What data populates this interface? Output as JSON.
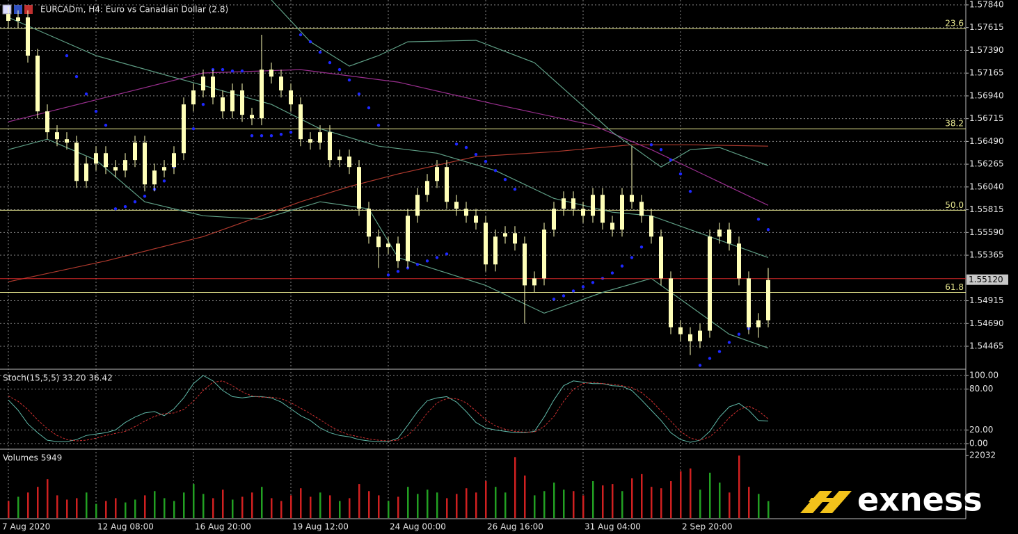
{
  "chart_data": [
    {
      "type": "candlestick",
      "title": "EURCADm, H4:  Euro vs Canadian Dollar (2.8)",
      "color": "#ffffb8",
      "grid": true,
      "categories": [
        "7 Aug 2020",
        null,
        null,
        null,
        null,
        null,
        null,
        null,
        null,
        "12 Aug 08:00",
        null,
        null,
        null,
        null,
        null,
        null,
        null,
        null,
        null,
        "16 Aug 20:00",
        null,
        null,
        null,
        null,
        null,
        null,
        null,
        null,
        null,
        "19 Aug 12:00",
        null,
        null,
        null,
        null,
        null,
        null,
        null,
        null,
        null,
        "24 Aug 00:00",
        null,
        null,
        null,
        null,
        null,
        null,
        null,
        null,
        null,
        "26 Aug 16:00",
        null,
        null,
        null,
        null,
        null,
        null,
        null,
        null,
        null,
        "31 Aug 04:00",
        null,
        null,
        null,
        null,
        null,
        null,
        null,
        null,
        null,
        "2 Sep 20:00",
        null,
        null,
        null,
        null,
        null,
        null,
        null,
        null,
        null
      ],
      "open": [
        1.5775,
        1.57682,
        1.57716,
        1.57338,
        1.56787,
        1.56581,
        1.56512,
        1.56478,
        1.56099,
        1.56271,
        1.56374,
        1.56237,
        1.56202,
        1.56306,
        1.56478,
        1.56065,
        1.56202,
        1.56237,
        1.56374,
        1.56856,
        1.56994,
        1.57131,
        1.56925,
        1.56787,
        1.56994,
        1.56753,
        1.56718,
        1.572,
        1.57131,
        1.56994,
        1.56856,
        1.56512,
        1.56478,
        1.56581,
        1.56306,
        1.5634,
        1.56237,
        1.55824,
        1.55549,
        1.55446,
        1.5548,
        1.55308,
        1.55755,
        1.55962,
        1.56099,
        1.56237,
        1.55893,
        1.55824,
        1.55755,
        1.55686,
        1.55274,
        1.55549,
        1.55583,
        1.5548,
        1.55067,
        1.55136,
        1.55618,
        1.55824,
        1.55927,
        1.55824,
        1.55755,
        1.55962,
        1.55686,
        1.55618,
        1.55962,
        1.55893,
        1.55755,
        1.55549,
        1.55136,
        1.54653,
        1.54584,
        1.54515,
        1.54619,
        1.55549,
        1.55618,
        1.5548,
        1.55136,
        1.54653,
        1.54722
      ],
      "high": [
        1.57819,
        1.57785,
        1.57785,
        1.57406,
        1.56856,
        1.5665,
        1.56581,
        1.56546,
        1.5634,
        1.56443,
        1.56443,
        1.56306,
        1.56374,
        1.56546,
        1.56546,
        1.56271,
        1.56306,
        1.56443,
        1.56925,
        1.57062,
        1.572,
        1.572,
        1.56994,
        1.57062,
        1.57062,
        1.56822,
        1.57544,
        1.57269,
        1.572,
        1.57062,
        1.56925,
        1.56581,
        1.5665,
        1.5665,
        1.56409,
        1.56409,
        1.56306,
        1.55893,
        1.55618,
        1.55549,
        1.55549,
        1.55824,
        1.5603,
        1.56168,
        1.56306,
        1.56306,
        1.55962,
        1.55893,
        1.55824,
        1.55755,
        1.55618,
        1.55652,
        1.55652,
        1.55549,
        1.55205,
        1.55686,
        1.55893,
        1.55996,
        1.55996,
        1.55893,
        1.5603,
        1.5603,
        1.55755,
        1.5603,
        1.56443,
        1.55962,
        1.55824,
        1.55618,
        1.55205,
        1.54722,
        1.54653,
        1.54688,
        1.55618,
        1.55686,
        1.55686,
        1.55549,
        1.55205,
        1.54792,
        1.55239
      ],
      "low": [
        1.57613,
        1.57613,
        1.57269,
        1.56718,
        1.56512,
        1.56443,
        1.56409,
        1.5603,
        1.5603,
        1.56202,
        1.56168,
        1.56134,
        1.56134,
        1.56237,
        1.55996,
        1.55996,
        1.56134,
        1.56168,
        1.56306,
        1.56787,
        1.56925,
        1.56856,
        1.56718,
        1.56718,
        1.56684,
        1.5665,
        1.5665,
        1.57062,
        1.56925,
        1.56787,
        1.56443,
        1.56409,
        1.56409,
        1.56237,
        1.56237,
        1.56168,
        1.55755,
        1.5548,
        1.55239,
        1.55377,
        1.55239,
        1.55239,
        1.55686,
        1.55893,
        1.5603,
        1.55824,
        1.55755,
        1.55686,
        1.55618,
        1.55205,
        1.55205,
        1.5548,
        1.55411,
        1.54688,
        1.54998,
        1.55067,
        1.55549,
        1.55755,
        1.55755,
        1.55686,
        1.55686,
        1.55618,
        1.55549,
        1.55549,
        1.55824,
        1.55686,
        1.5548,
        1.55067,
        1.54584,
        1.54515,
        1.54378,
        1.54447,
        1.5455,
        1.5548,
        1.55411,
        1.55067,
        1.54584,
        1.5455,
        1.54653
      ],
      "close": [
        1.57682,
        1.57716,
        1.57338,
        1.56787,
        1.56581,
        1.56512,
        1.56478,
        1.56099,
        1.56271,
        1.56374,
        1.56237,
        1.56202,
        1.56306,
        1.56478,
        1.56065,
        1.56202,
        1.56237,
        1.56374,
        1.56856,
        1.56994,
        1.57131,
        1.56925,
        1.56787,
        1.56994,
        1.56753,
        1.56718,
        1.572,
        1.57131,
        1.56994,
        1.56856,
        1.56512,
        1.56478,
        1.56581,
        1.56306,
        1.5634,
        1.56237,
        1.55824,
        1.55549,
        1.55446,
        1.5548,
        1.55308,
        1.55755,
        1.55962,
        1.56099,
        1.56237,
        1.55893,
        1.55824,
        1.55755,
        1.55686,
        1.55274,
        1.55549,
        1.55583,
        1.5548,
        1.55067,
        1.55136,
        1.55618,
        1.55824,
        1.55927,
        1.55824,
        1.55755,
        1.55962,
        1.55686,
        1.55618,
        1.55962,
        1.55893,
        1.55755,
        1.55549,
        1.55136,
        1.54653,
        1.54584,
        1.54515,
        1.54619,
        1.55549,
        1.55618,
        1.5548,
        1.55136,
        1.54653,
        1.54722,
        1.5512
      ],
      "ylim": [
        1.54245,
        1.57888
      ],
      "yticks": [
        {
          "value": 1.5784,
          "label": "1.57840"
        },
        1.57615,
        {
          "value": 1.5739,
          "label": "1.57390"
        },
        1.57165,
        {
          "value": 1.5694,
          "label": "1.56940"
        },
        1.56715,
        {
          "value": 1.5649,
          "label": "1.56490"
        },
        1.56265,
        {
          "value": 1.5604,
          "label": "1.56040"
        },
        1.55815,
        {
          "value": 1.5559,
          "label": "1.55590"
        },
        1.55365,
        1.54915,
        {
          "value": 1.5469,
          "label": "1.54690"
        },
        1.54465
      ],
      "overlays": [
        {
          "type": "line",
          "color": "#b03a2e",
          "x": [
            0,
            10,
            20,
            30,
            35,
            40,
            48,
            56,
            64,
            70,
            78
          ],
          "values": [
            1.55102,
            1.55308,
            1.55549,
            1.55893,
            1.56044,
            1.56168,
            1.5634,
            1.56388,
            1.56457,
            1.56457,
            1.56443
          ]
        },
        {
          "type": "line",
          "color": "#9a2f8f",
          "x": [
            0,
            10,
            20,
            30,
            40,
            50,
            60,
            66,
            72,
            78
          ],
          "values": [
            1.56684,
            1.56925,
            1.57166,
            1.572,
            1.57076,
            1.56856,
            1.5665,
            1.56409,
            1.56134,
            1.55858
          ]
        },
        {
          "type": "line",
          "color": "#5f9f86",
          "x": [
            27,
            31,
            35,
            38,
            41,
            48,
            54,
            58,
            62,
            67,
            70,
            73,
            78
          ],
          "values": [
            1.57888,
            1.57475,
            1.57234,
            1.57338,
            1.57475,
            1.57489,
            1.57269,
            1.56925,
            1.56581,
            1.56237,
            1.56409,
            1.5643,
            1.56251
          ]
        },
        {
          "type": "line",
          "color": "#5f9f86",
          "x": [
            0,
            9,
            18,
            27,
            32,
            38,
            44,
            50,
            56,
            62,
            66,
            72,
            78
          ],
          "values": [
            1.57716,
            1.57338,
            1.57097,
            1.56856,
            1.56615,
            1.56443,
            1.56374,
            1.56202,
            1.55927,
            1.5579,
            1.55755,
            1.55549,
            1.55342
          ]
        },
        {
          "type": "line",
          "color": "#5f9f86",
          "x": [
            0,
            4,
            9,
            14,
            20,
            26,
            32,
            37,
            40,
            49,
            55,
            61,
            66,
            70,
            74,
            78
          ],
          "values": [
            1.56409,
            1.56512,
            1.56306,
            1.55893,
            1.55755,
            1.55721,
            1.55893,
            1.55824,
            1.55342,
            1.55067,
            1.54792,
            1.54998,
            1.55136,
            1.54861,
            1.54584,
            1.54447
          ]
        },
        {
          "type": "dots",
          "color": "#1e28ff",
          "values": [
            null,
            null,
            null,
            null,
            null,
            null,
            1.57338,
            1.57131,
            1.56959,
            1.56787,
            1.5665,
            1.55824,
            1.55845,
            1.55893,
            1.55948,
            1.56017,
            1.56099,
            1.56237,
            1.56409,
            1.56615,
            1.56856,
            1.572,
            1.572,
            1.57186,
            1.57186,
            1.56546,
            1.56546,
            1.56546,
            1.5656,
            1.56581,
            1.57544,
            1.57475,
            1.57372,
            1.57269,
            1.572,
            1.57097,
            1.56959,
            1.56822,
            1.5665,
            1.5517,
            1.55205,
            1.55239,
            1.55274,
            1.55308,
            1.55342,
            1.55377,
            1.56464,
            1.5643,
            1.56361,
            1.56292,
            1.56202,
            1.56113,
            1.56017,
            null,
            null,
            null,
            1.5493,
            1.54964,
            1.55012,
            1.55053,
            1.55095,
            1.55136,
            1.5519,
            1.55258,
            1.55342,
            1.55446,
            1.56457,
            1.56409,
            1.56306,
            1.56168,
            1.55996,
            1.54276,
            1.54345,
            1.54413,
            1.54503,
            1.54584,
            1.5464,
            1.55721,
            1.55618
          ]
        }
      ],
      "fib_color": "#e8e890",
      "fib_levels": [
        {
          "value": 1.57606,
          "label": "23.6"
        },
        {
          "value": 1.56615,
          "label": "38.2"
        },
        {
          "value": 1.5581,
          "label": "50.0"
        },
        {
          "value": 1.54998,
          "label": "61.8"
        }
      ],
      "current_color": "#d02828",
      "current_price": {
        "value": 1.5512,
        "label": "1.55120"
      }
    },
    {
      "type": "line",
      "title": "Stoch(15,5,5) 33.20 36.42",
      "grid": true,
      "ylim": [
        -7.1,
        107.1
      ],
      "yticks": [
        {
          "value": 100,
          "label": "100.00"
        },
        {
          "value": 80,
          "label": "80.00"
        },
        {
          "value": 20,
          "label": "20.00"
        },
        {
          "value": 0,
          "label": "0.00"
        }
      ],
      "series": [
        {
          "color": "#5fb8a8",
          "style": "solid",
          "values": [
            64,
            49,
            29,
            16,
            5,
            3,
            3,
            6,
            12,
            14,
            16,
            20,
            31,
            39,
            45,
            47,
            41,
            51,
            67,
            88,
            100,
            92,
            78,
            69,
            67,
            69,
            69,
            67,
            61,
            51,
            41,
            34,
            23,
            16,
            12,
            10,
            6,
            4,
            3,
            3,
            8,
            27,
            47,
            63,
            67,
            69,
            61,
            47,
            31,
            23,
            20,
            18,
            16,
            16,
            18,
            39,
            64,
            85,
            92,
            90,
            88,
            88,
            85,
            84,
            78,
            64,
            49,
            34,
            16,
            6,
            2,
            5,
            18,
            39,
            54,
            59,
            49,
            34,
            33.2
          ]
        },
        {
          "color": "#d03030",
          "style": "dashed",
          "values": [
            70,
            62,
            50,
            35,
            22,
            12,
            6,
            4,
            5,
            8,
            12,
            15,
            18,
            25,
            33,
            40,
            44,
            45,
            50,
            62,
            78,
            90,
            92,
            85,
            76,
            70,
            68,
            68,
            66,
            60,
            52,
            44,
            35,
            26,
            18,
            13,
            10,
            7,
            5,
            4,
            5,
            12,
            26,
            45,
            60,
            66,
            66,
            60,
            48,
            35,
            26,
            21,
            18,
            17,
            17,
            25,
            40,
            62,
            80,
            88,
            90,
            88,
            87,
            85,
            82,
            75,
            63,
            48,
            33,
            18,
            8,
            5,
            10,
            22,
            38,
            50,
            55,
            48,
            36.42
          ]
        }
      ]
    },
    {
      "type": "bar",
      "title": "Volumes 5949",
      "up_color": "#22a022",
      "down_color": "#d02020",
      "ylim": [
        0,
        23805
      ],
      "yticks": [
        22032
      ],
      "values": [
        6000,
        7500,
        9000,
        11000,
        13700,
        8000,
        6500,
        7000,
        9000,
        5000,
        6000,
        7000,
        5500,
        6500,
        8000,
        9500,
        7000,
        6000,
        9000,
        12000,
        8500,
        7000,
        10000,
        6500,
        7500,
        9000,
        11000,
        7000,
        6000,
        8000,
        10500,
        7500,
        9000,
        8000,
        6000,
        7000,
        12000,
        9500,
        8000,
        6000,
        7500,
        11000,
        8500,
        10000,
        9000,
        7000,
        8500,
        10500,
        9000,
        13000,
        11000,
        9000,
        21500,
        15000,
        8000,
        9500,
        12500,
        10000,
        9500,
        8000,
        13000,
        11500,
        12000,
        9500,
        14000,
        15500,
        11000,
        10500,
        13000,
        16500,
        17500,
        10000,
        16000,
        12500,
        9000,
        22032,
        11000,
        8500,
        5949
      ]
    }
  ],
  "logo": "exness"
}
